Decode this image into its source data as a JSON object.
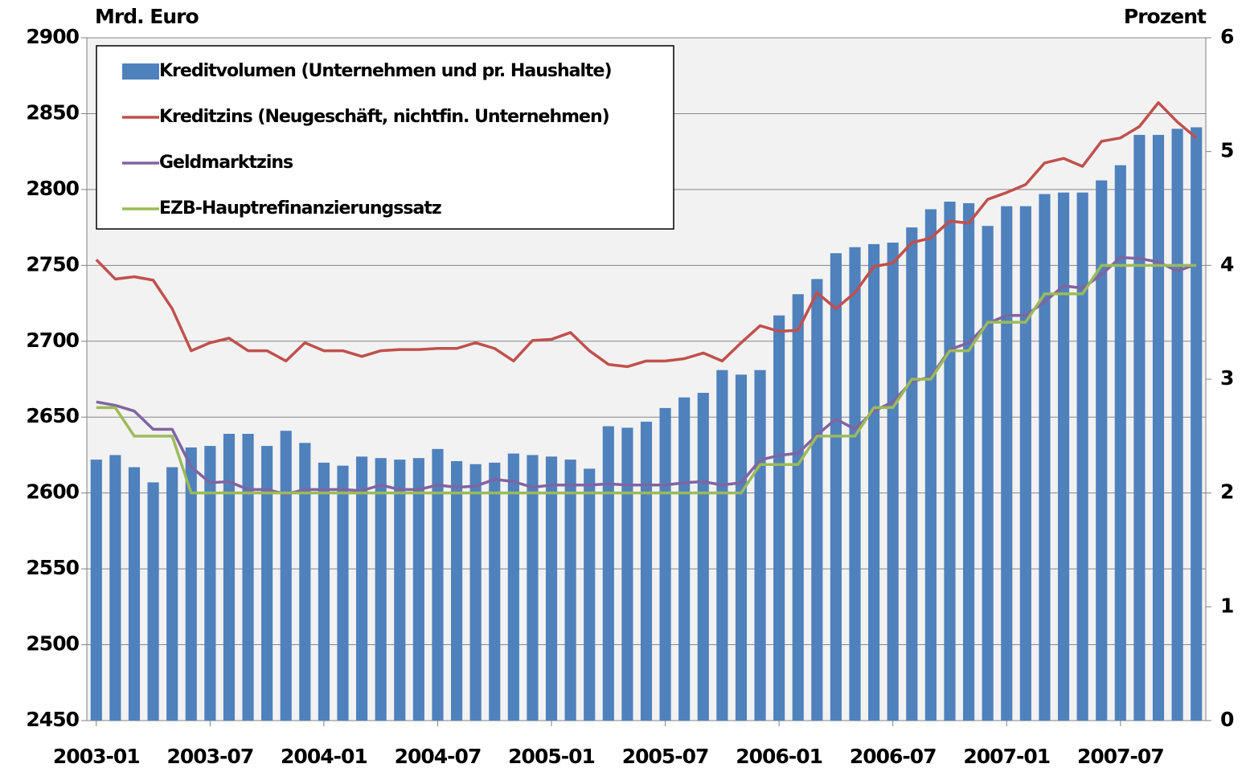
{
  "chart_data": {
    "type": "bar",
    "y_label": "Mrd. Euro",
    "y2_label": "Prozent",
    "categories": [
      "2003-01",
      null,
      null,
      null,
      null,
      null,
      "2003-07",
      null,
      null,
      null,
      null,
      null,
      "2004-01",
      null,
      null,
      null,
      null,
      null,
      "2004-07",
      null,
      null,
      null,
      null,
      null,
      "2005-01",
      null,
      null,
      null,
      null,
      null,
      "2005-07",
      null,
      null,
      null,
      null,
      null,
      "2006-01",
      null,
      null,
      null,
      null,
      null,
      "2006-07",
      null,
      null,
      null,
      null,
      null,
      "2007-01",
      null,
      null,
      null,
      null,
      null,
      "2007-07",
      null,
      null,
      null,
      null
    ],
    "series": [
      {
        "name": "Kreditvolumen (Unternehmen und pr. Haushalte)",
        "type": "bar",
        "color": "#4f81bd",
        "values": [
          2622,
          2625,
          2617,
          2607,
          2617,
          2630,
          2631,
          2639,
          2639,
          2631,
          2641,
          2633,
          2620,
          2618,
          2624,
          2623,
          2622,
          2623,
          2629,
          2621,
          2619,
          2620,
          2626,
          2625,
          2624,
          2622,
          2616,
          2644,
          2643,
          2647,
          2656,
          2663,
          2666,
          2681,
          2678,
          2681,
          2717,
          2731,
          2741,
          2758,
          2762,
          2764,
          2765,
          2775,
          2787,
          2792,
          2791,
          2776,
          2789,
          2789,
          2797,
          2798,
          2798,
          2806,
          2816,
          2836,
          2836,
          2840,
          2841
        ]
      },
      {
        "name": "Kreditzins (Neugeschäft, nichtfin. Unternehmen)",
        "type": "line",
        "axis": "y2",
        "color": "#c0504d",
        "values": [
          4.05,
          3.88,
          3.9,
          3.87,
          3.62,
          3.25,
          3.32,
          3.36,
          3.25,
          3.25,
          3.16,
          3.32,
          3.25,
          3.25,
          3.2,
          3.25,
          3.26,
          3.26,
          3.27,
          3.27,
          3.32,
          3.27,
          3.16,
          3.34,
          3.35,
          3.41,
          3.25,
          3.13,
          3.11,
          3.16,
          3.16,
          3.18,
          3.23,
          3.16,
          3.32,
          3.47,
          3.42,
          3.43,
          3.76,
          3.62,
          3.76,
          3.99,
          4.02,
          4.2,
          4.24,
          4.39,
          4.37,
          4.58,
          4.64,
          4.71,
          4.9,
          4.94,
          4.87,
          5.09,
          5.12,
          5.22,
          5.43,
          5.26,
          5.12
        ]
      },
      {
        "name": "Geldmarktzins",
        "type": "line",
        "axis": "y2",
        "color": "#8064a2",
        "values": [
          2.8,
          2.77,
          2.72,
          2.56,
          2.56,
          2.23,
          2.09,
          2.1,
          2.03,
          2.03,
          1.99,
          2.03,
          2.03,
          2.03,
          2.02,
          2.07,
          2.03,
          2.03,
          2.07,
          2.05,
          2.06,
          2.12,
          2.1,
          2.05,
          2.07,
          2.07,
          2.07,
          2.08,
          2.07,
          2.07,
          2.07,
          2.09,
          2.1,
          2.07,
          2.09,
          2.29,
          2.33,
          2.35,
          2.51,
          2.65,
          2.56,
          2.72,
          2.8,
          2.98,
          3.02,
          3.26,
          3.32,
          3.49,
          3.56,
          3.56,
          3.68,
          3.82,
          3.8,
          3.92,
          4.07,
          4.06,
          4.03,
          3.95,
          4.01
        ]
      },
      {
        "name": "EZB-Hauptrefinanzierungssatz",
        "type": "line",
        "axis": "y2",
        "color": "#9bbb59",
        "values": [
          2.75,
          2.75,
          2.5,
          2.5,
          2.5,
          2,
          2,
          2,
          2,
          2,
          2,
          2,
          2,
          2,
          2,
          2,
          2,
          2,
          2,
          2,
          2,
          2,
          2,
          2,
          2,
          2,
          2,
          2,
          2,
          2,
          2,
          2,
          2,
          2,
          2,
          2.25,
          2.25,
          2.25,
          2.5,
          2.5,
          2.5,
          2.75,
          2.75,
          3,
          3,
          3.25,
          3.25,
          3.5,
          3.5,
          3.5,
          3.75,
          3.75,
          3.75,
          4,
          4,
          4,
          4,
          4,
          4
        ]
      }
    ],
    "ylim": [
      2450,
      2900
    ],
    "yticks": [
      2450,
      2500,
      2550,
      2600,
      2650,
      2700,
      2750,
      2800,
      2850,
      2900
    ],
    "y2lim": [
      0,
      6
    ],
    "y2ticks": [
      0,
      1,
      2,
      3,
      4,
      5,
      6
    ],
    "grid": true,
    "legend": "upper left"
  }
}
